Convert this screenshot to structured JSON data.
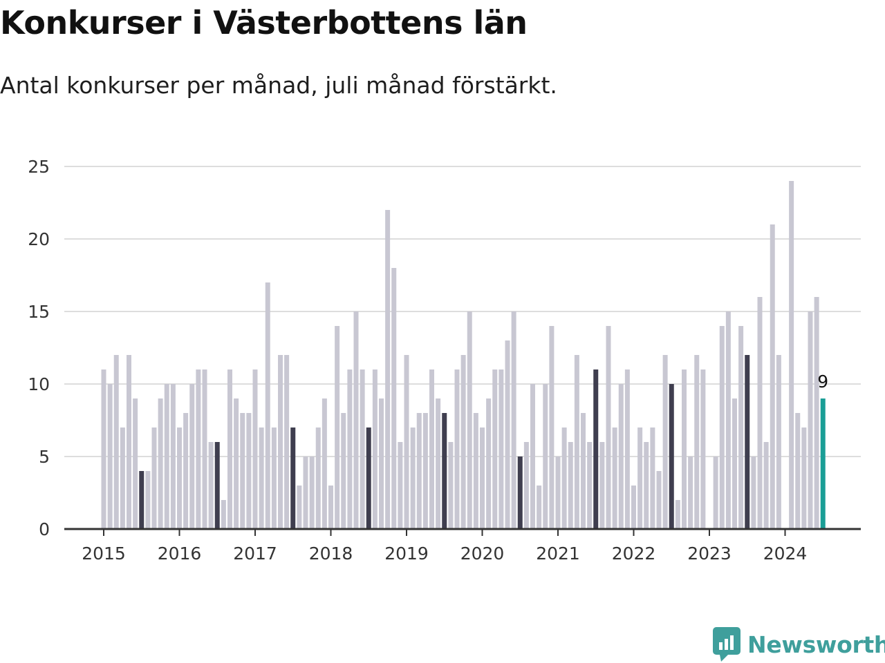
{
  "title": "Konkurser i Västerbottens län",
  "subtitle": "Antal konkurser per månad, juli månad förstärkt.",
  "logo_text": "Newsworthy",
  "colors": {
    "bar": "#c8c7d2",
    "highlight": "#3f3e4f",
    "latest": "#1a9e96",
    "grid": "#dddddd",
    "axis": "#333333",
    "brand": "#3f9f9c"
  },
  "chart_data": {
    "type": "bar",
    "title": "Konkurser i Västerbottens län",
    "subtitle": "Antal konkurser per månad, juli månad förstärkt.",
    "xlabel": "",
    "ylabel": "",
    "ylim": [
      0,
      25
    ],
    "yticks": [
      0,
      5,
      10,
      15,
      20,
      25
    ],
    "grid": true,
    "start": "2015-01",
    "x_ticks": [
      "2015",
      "2016",
      "2017",
      "2018",
      "2019",
      "2020",
      "2021",
      "2022",
      "2023",
      "2024"
    ],
    "highlight_month": "July",
    "values": [
      11,
      10,
      12,
      7,
      12,
      9,
      4,
      4,
      7,
      9,
      10,
      10,
      7,
      8,
      10,
      11,
      11,
      6,
      6,
      2,
      11,
      9,
      8,
      8,
      11,
      7,
      17,
      7,
      12,
      12,
      7,
      3,
      5,
      5,
      7,
      9,
      3,
      14,
      8,
      11,
      15,
      11,
      7,
      11,
      9,
      22,
      18,
      6,
      12,
      7,
      8,
      8,
      11,
      9,
      8,
      6,
      11,
      12,
      15,
      8,
      7,
      9,
      11,
      11,
      13,
      15,
      5,
      6,
      10,
      3,
      10,
      14,
      5,
      7,
      6,
      12,
      8,
      6,
      11,
      6,
      14,
      7,
      10,
      11,
      3,
      7,
      6,
      7,
      4,
      12,
      10,
      2,
      11,
      5,
      12,
      11,
      0,
      5,
      14,
      15,
      9,
      14,
      12,
      5,
      16,
      6,
      21,
      12,
      0,
      24,
      8,
      7,
      15,
      16,
      9
    ],
    "last_value_label": "9"
  }
}
